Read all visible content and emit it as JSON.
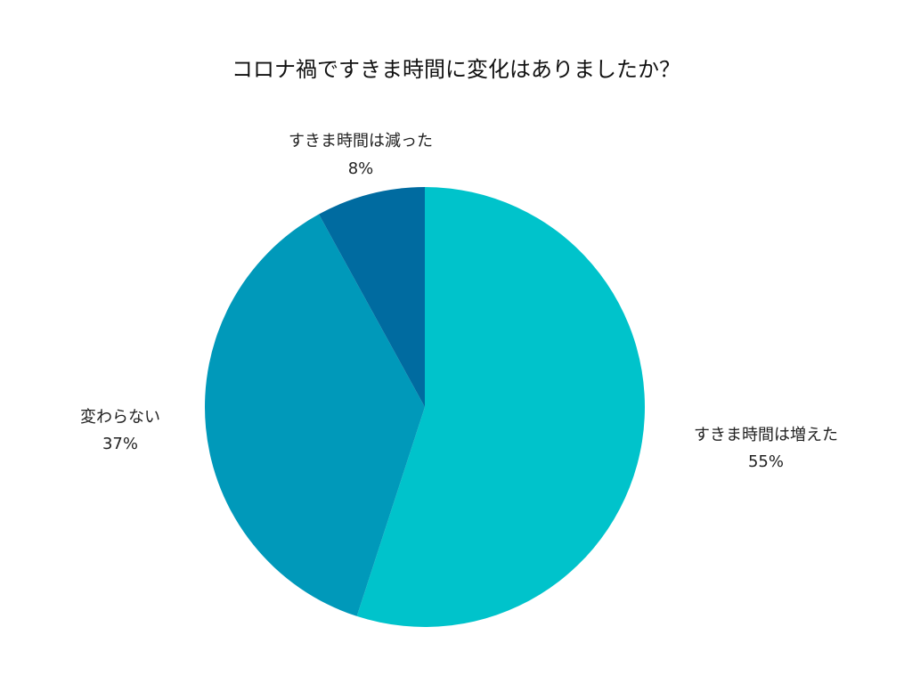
{
  "chart_data": {
    "type": "pie",
    "title": "コロナ禍ですきま時間に変化はありましたか？",
    "slices": [
      {
        "label": "すきま時間は増えた",
        "value": 55,
        "value_label": "55%",
        "color": "#00C3CB"
      },
      {
        "label": "変わらない",
        "value": 37,
        "value_label": "37%",
        "color": "#0099BA"
      },
      {
        "label": "すきま時間は減った",
        "value": 8,
        "value_label": "8%",
        "color": "#006BA0"
      }
    ],
    "start_angle": "12 o'clock",
    "direction": "clockwise",
    "legend": "none"
  }
}
